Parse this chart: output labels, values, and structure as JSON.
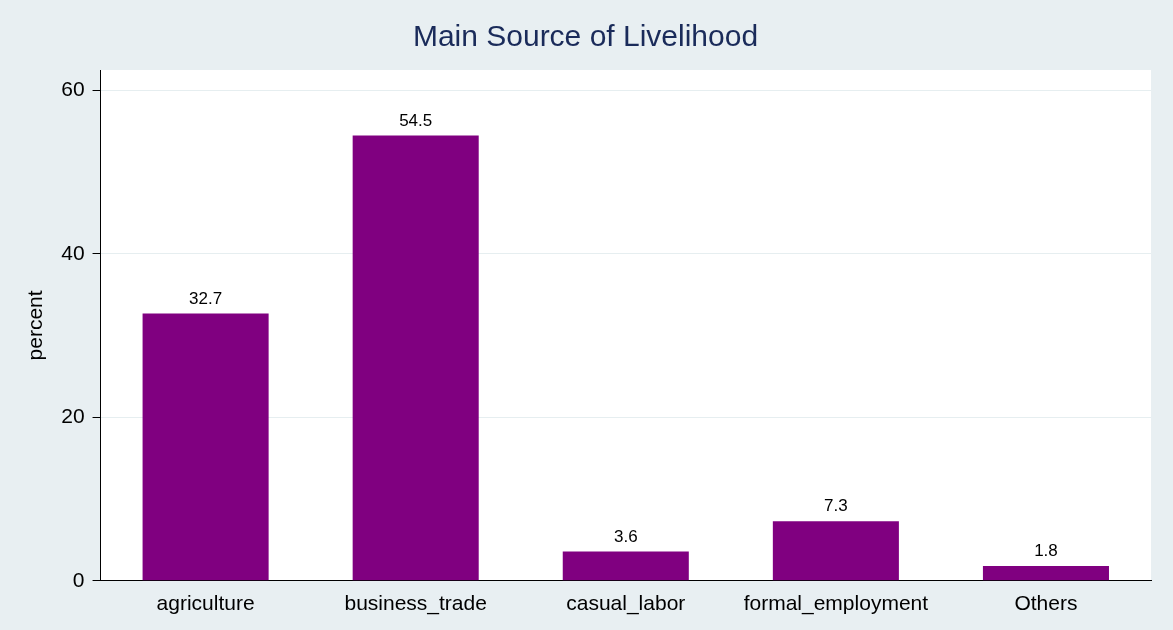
{
  "chart_data": {
    "type": "bar",
    "title": "Main Source of Livelihood",
    "ylabel": "percent",
    "categories": [
      "agriculture",
      "business_trade",
      "casual_labor",
      "formal_employment",
      "Others"
    ],
    "values": [
      32.7,
      54.5,
      3.6,
      7.3,
      1.8
    ],
    "color": "#800080",
    "ylim": [
      0,
      62.5
    ],
    "yticks": [
      0,
      20,
      40,
      60
    ],
    "grid": "y",
    "legend": false,
    "data_labels": true
  }
}
